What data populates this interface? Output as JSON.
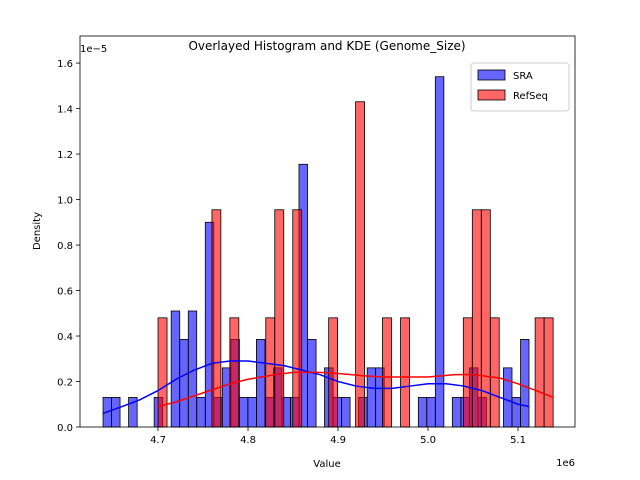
{
  "chart_data": {
    "type": "histogram",
    "title": "Overlayed Histogram and KDE (Genome_Size)",
    "x_label": "Value",
    "y_label": "Density",
    "x_offset": "1e6",
    "y_offset": "1e−5",
    "xlim": [
      4.6133,
      5.1633
    ],
    "ylim": [
      0,
      1.719
    ],
    "xticks": [
      4.7,
      4.8,
      4.9,
      {
        "value": 5,
        "label": "5.0"
      },
      5.1
    ],
    "yticks": [
      {
        "value": 0,
        "label": "0.0"
      },
      0.2,
      0.4,
      0.6,
      0.8,
      {
        "value": 1,
        "label": "1.0"
      },
      1.2,
      1.4,
      1.6
    ],
    "legend": "upper right",
    "series": [
      {
        "name": "SRA",
        "color": "#0000ff",
        "bins": [
          4.6389,
          4.6484,
          4.6578,
          4.6673,
          4.6768,
          4.6862,
          4.6957,
          4.7052,
          4.7146,
          4.7241,
          4.7336,
          4.743,
          4.7525,
          4.762,
          4.7714,
          4.7809,
          4.7904,
          4.7998,
          4.8093,
          4.8188,
          4.8282,
          4.8377,
          4.8472,
          4.8566,
          4.8661,
          4.8756,
          4.885,
          4.8945,
          4.904,
          4.9134,
          4.9229,
          4.9324,
          4.9418,
          4.9513,
          4.9608,
          4.9702,
          4.9797,
          4.9892,
          4.9986,
          5.0081,
          5.0176,
          5.027,
          5.0365,
          5.046,
          5.0554,
          5.0649,
          5.0744,
          5.0838,
          5.0933,
          5.1028,
          5.1122
        ],
        "values": [
          0.13,
          0.13,
          0,
          0.13,
          0,
          0,
          0.13,
          0,
          0.51,
          0.385,
          0.51,
          0.13,
          0.9,
          0.13,
          0.26,
          0.385,
          0.13,
          0.13,
          0.385,
          0.13,
          0.26,
          0.13,
          0.13,
          1.155,
          0.385,
          0,
          0.26,
          0.13,
          0.13,
          0,
          0.13,
          0.26,
          0.26,
          0,
          0,
          0,
          0,
          0.13,
          0.13,
          1.54,
          0,
          0.13,
          0.13,
          0.26,
          0.13,
          0,
          0,
          0.26,
          0.13,
          0.385
        ],
        "kde_x": [
          4.639,
          4.66,
          4.68,
          4.7,
          4.72,
          4.74,
          4.76,
          4.78,
          4.8,
          4.82,
          4.84,
          4.86,
          4.88,
          4.9,
          4.92,
          4.94,
          4.96,
          4.98,
          5.0,
          5.02,
          5.04,
          5.06,
          5.08,
          5.1,
          5.112
        ],
        "kde_values": [
          0.06,
          0.09,
          0.12,
          0.16,
          0.21,
          0.25,
          0.28,
          0.29,
          0.29,
          0.28,
          0.27,
          0.25,
          0.23,
          0.2,
          0.18,
          0.17,
          0.17,
          0.18,
          0.19,
          0.19,
          0.18,
          0.16,
          0.13,
          0.1,
          0.09
        ]
      },
      {
        "name": "RefSeq",
        "color": "#ff0000",
        "bins": [
          4.7,
          4.71,
          4.72,
          4.7299,
          4.7399,
          4.7499,
          4.7599,
          4.7698,
          4.7798,
          4.7898,
          4.7998,
          4.8098,
          4.8197,
          4.8297,
          4.8397,
          4.8497,
          4.8596,
          4.8696,
          4.8796,
          4.8896,
          4.8995,
          4.9095,
          4.9195,
          4.9295,
          4.9395,
          4.9494,
          4.9594,
          4.9694,
          4.9794,
          4.9893,
          4.9993,
          5.0093,
          5.0193,
          5.0293,
          5.0392,
          5.0492,
          5.0592,
          5.0692,
          5.0791,
          5.0891,
          5.0991,
          5.1091,
          5.119,
          5.129,
          5.139
        ],
        "values": [
          0.48,
          0,
          0,
          0,
          0,
          0,
          0.955,
          0,
          0.48,
          0,
          0,
          0,
          0.48,
          0.955,
          0,
          0.955,
          0,
          0,
          0,
          0.48,
          0,
          0,
          1.43,
          0,
          0,
          0.48,
          0,
          0.48,
          0,
          0,
          0,
          0,
          0,
          0,
          0.48,
          0.955,
          0.955,
          0.48,
          0,
          0,
          0,
          0,
          0.48,
          0.48
        ],
        "kde_x": [
          4.7,
          4.72,
          4.75,
          4.78,
          4.8,
          4.83,
          4.85,
          4.88,
          4.9,
          4.93,
          4.95,
          4.98,
          5.0,
          5.03,
          5.05,
          5.08,
          5.1,
          5.12,
          5.139
        ],
        "kde_values": [
          0.09,
          0.11,
          0.15,
          0.19,
          0.21,
          0.23,
          0.24,
          0.24,
          0.235,
          0.225,
          0.22,
          0.22,
          0.22,
          0.23,
          0.23,
          0.215,
          0.19,
          0.16,
          0.13
        ]
      }
    ]
  }
}
